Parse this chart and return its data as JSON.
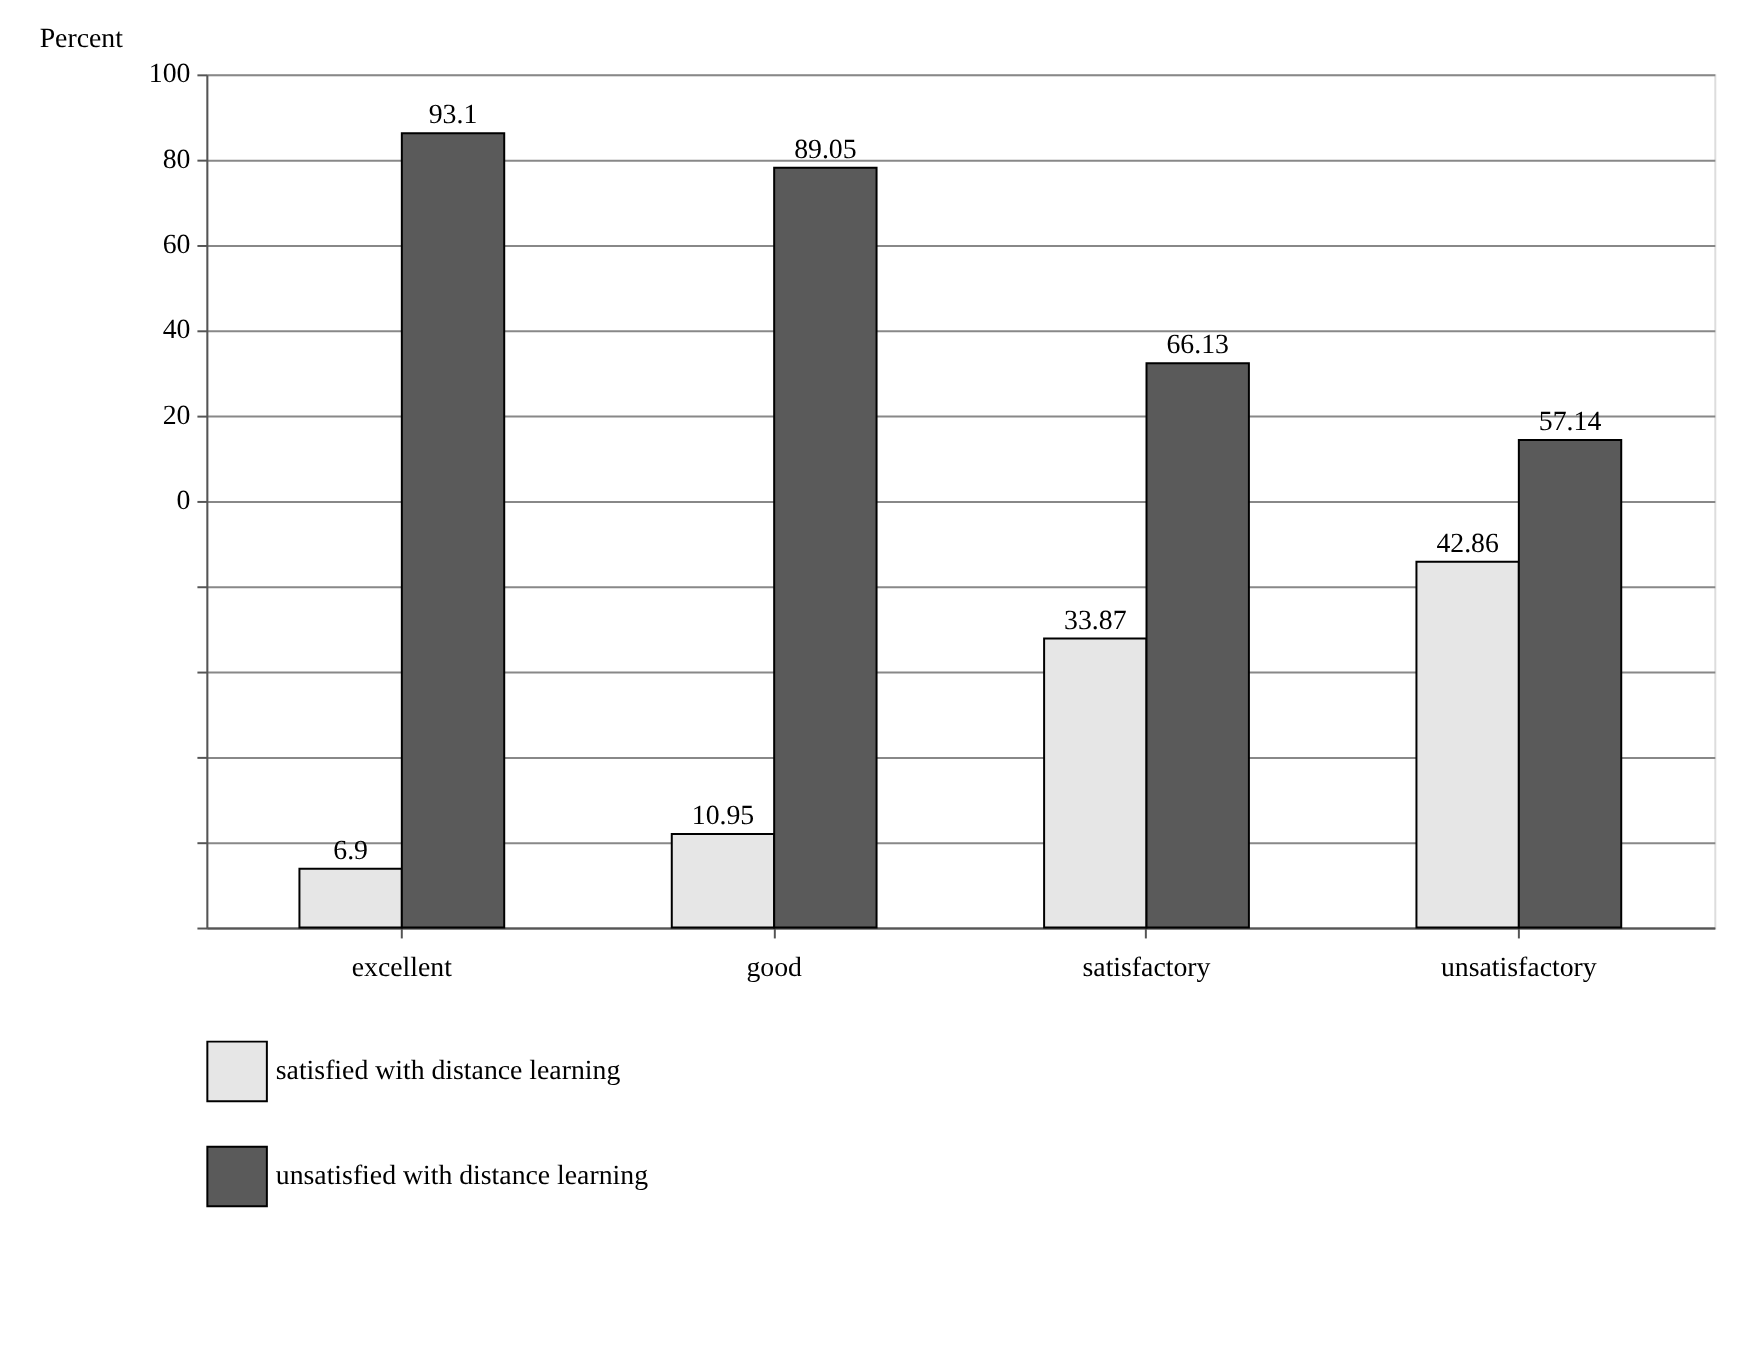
{
  "chart_data": {
    "type": "bar",
    "ylabel": "Percent",
    "categories": [
      "excellent",
      "good",
      "satisfactory",
      "unsatisfactory"
    ],
    "series": [
      {
        "name": "satisfied with distance learning",
        "color": "#e6e6e6",
        "values": [
          6.9,
          10.95,
          33.87,
          42.86
        ]
      },
      {
        "name": "unsatisfied with distance learning",
        "color": "#5a5a5a",
        "values": [
          93.1,
          89.05,
          66.13,
          57.14
        ]
      }
    ],
    "ylim": [
      0,
      100
    ],
    "yticks": [
      {
        "value": 0,
        "label": null
      },
      {
        "value": 10,
        "label": null
      },
      {
        "value": 20,
        "label": null
      },
      {
        "value": 30,
        "label": null
      },
      {
        "value": 40,
        "label": null
      },
      {
        "value": 50,
        "label": null
      },
      {
        "value": 60,
        "label": null
      },
      {
        "value": 70,
        "label": null
      },
      {
        "value": 80,
        "label": null
      },
      {
        "value": 90,
        "label": null
      },
      {
        "value": 100,
        "label": null
      }
    ],
    "tick_labels": "x",
    "annotations": [
      "100",
      "80",
      "60",
      "40",
      "20",
      "0"
    ],
    "grid": "y",
    "legend": "bottom",
    "data_labels": true
  }
}
